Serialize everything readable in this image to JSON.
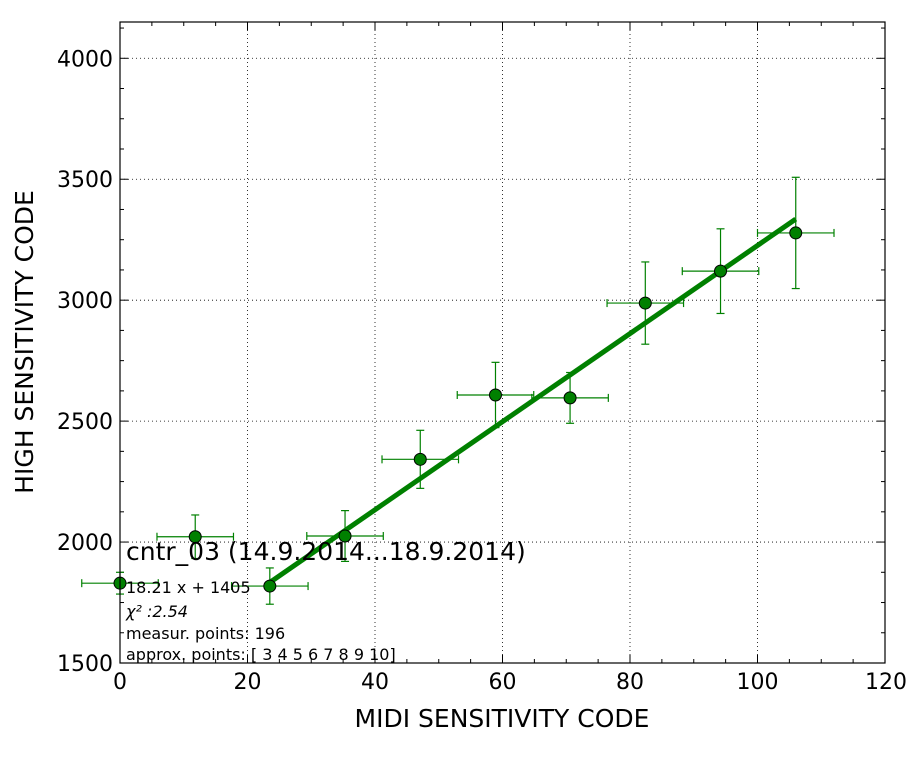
{
  "chart_data": {
    "type": "scatter",
    "xlabel": "MIDI SENSITIVITY CODE",
    "ylabel": "HIGH SENSITIVITY CODE",
    "xlim": [
      0,
      120
    ],
    "ylim": [
      1500,
      4150
    ],
    "xticks": [
      0,
      20,
      40,
      60,
      80,
      100,
      120
    ],
    "yticks": [
      1500,
      2000,
      2500,
      3000,
      3500,
      4000
    ],
    "grid": true,
    "series": [
      {
        "color": "#008000",
        "marker": "circle",
        "points": [
          {
            "x": 0.0,
            "y": 1830,
            "xerr": 6.0,
            "yerr": 45
          },
          {
            "x": 11.8,
            "y": 2022,
            "xerr": 6.0,
            "yerr": 90
          },
          {
            "x": 23.5,
            "y": 1818,
            "xerr": 6.0,
            "yerr": 75
          },
          {
            "x": 35.3,
            "y": 2025,
            "xerr": 6.0,
            "yerr": 105
          },
          {
            "x": 47.1,
            "y": 2342,
            "xerr": 6.0,
            "yerr": 120
          },
          {
            "x": 58.9,
            "y": 2608,
            "xerr": 6.0,
            "yerr": 135
          },
          {
            "x": 70.6,
            "y": 2596,
            "xerr": 6.0,
            "yerr": 105
          },
          {
            "x": 82.4,
            "y": 2988,
            "xerr": 6.0,
            "yerr": 170
          },
          {
            "x": 94.2,
            "y": 3120,
            "xerr": 6.0,
            "yerr": 175
          },
          {
            "x": 106.0,
            "y": 3278,
            "xerr": 6.0,
            "yerr": 230
          }
        ]
      }
    ],
    "fit_line": {
      "color": "#008000",
      "slope": 18.21,
      "intercept": 1405,
      "x_range": [
        23.5,
        106.0
      ]
    },
    "annotations": {
      "title": "cntr_03 (14.9.2014...18.9.2014)",
      "lines": [
        "18.21 x + 1405",
        "χ² :2.54",
        "measur. points: 196",
        "approx. points: [ 3  4  5  6  7  8  9 10]"
      ]
    }
  }
}
